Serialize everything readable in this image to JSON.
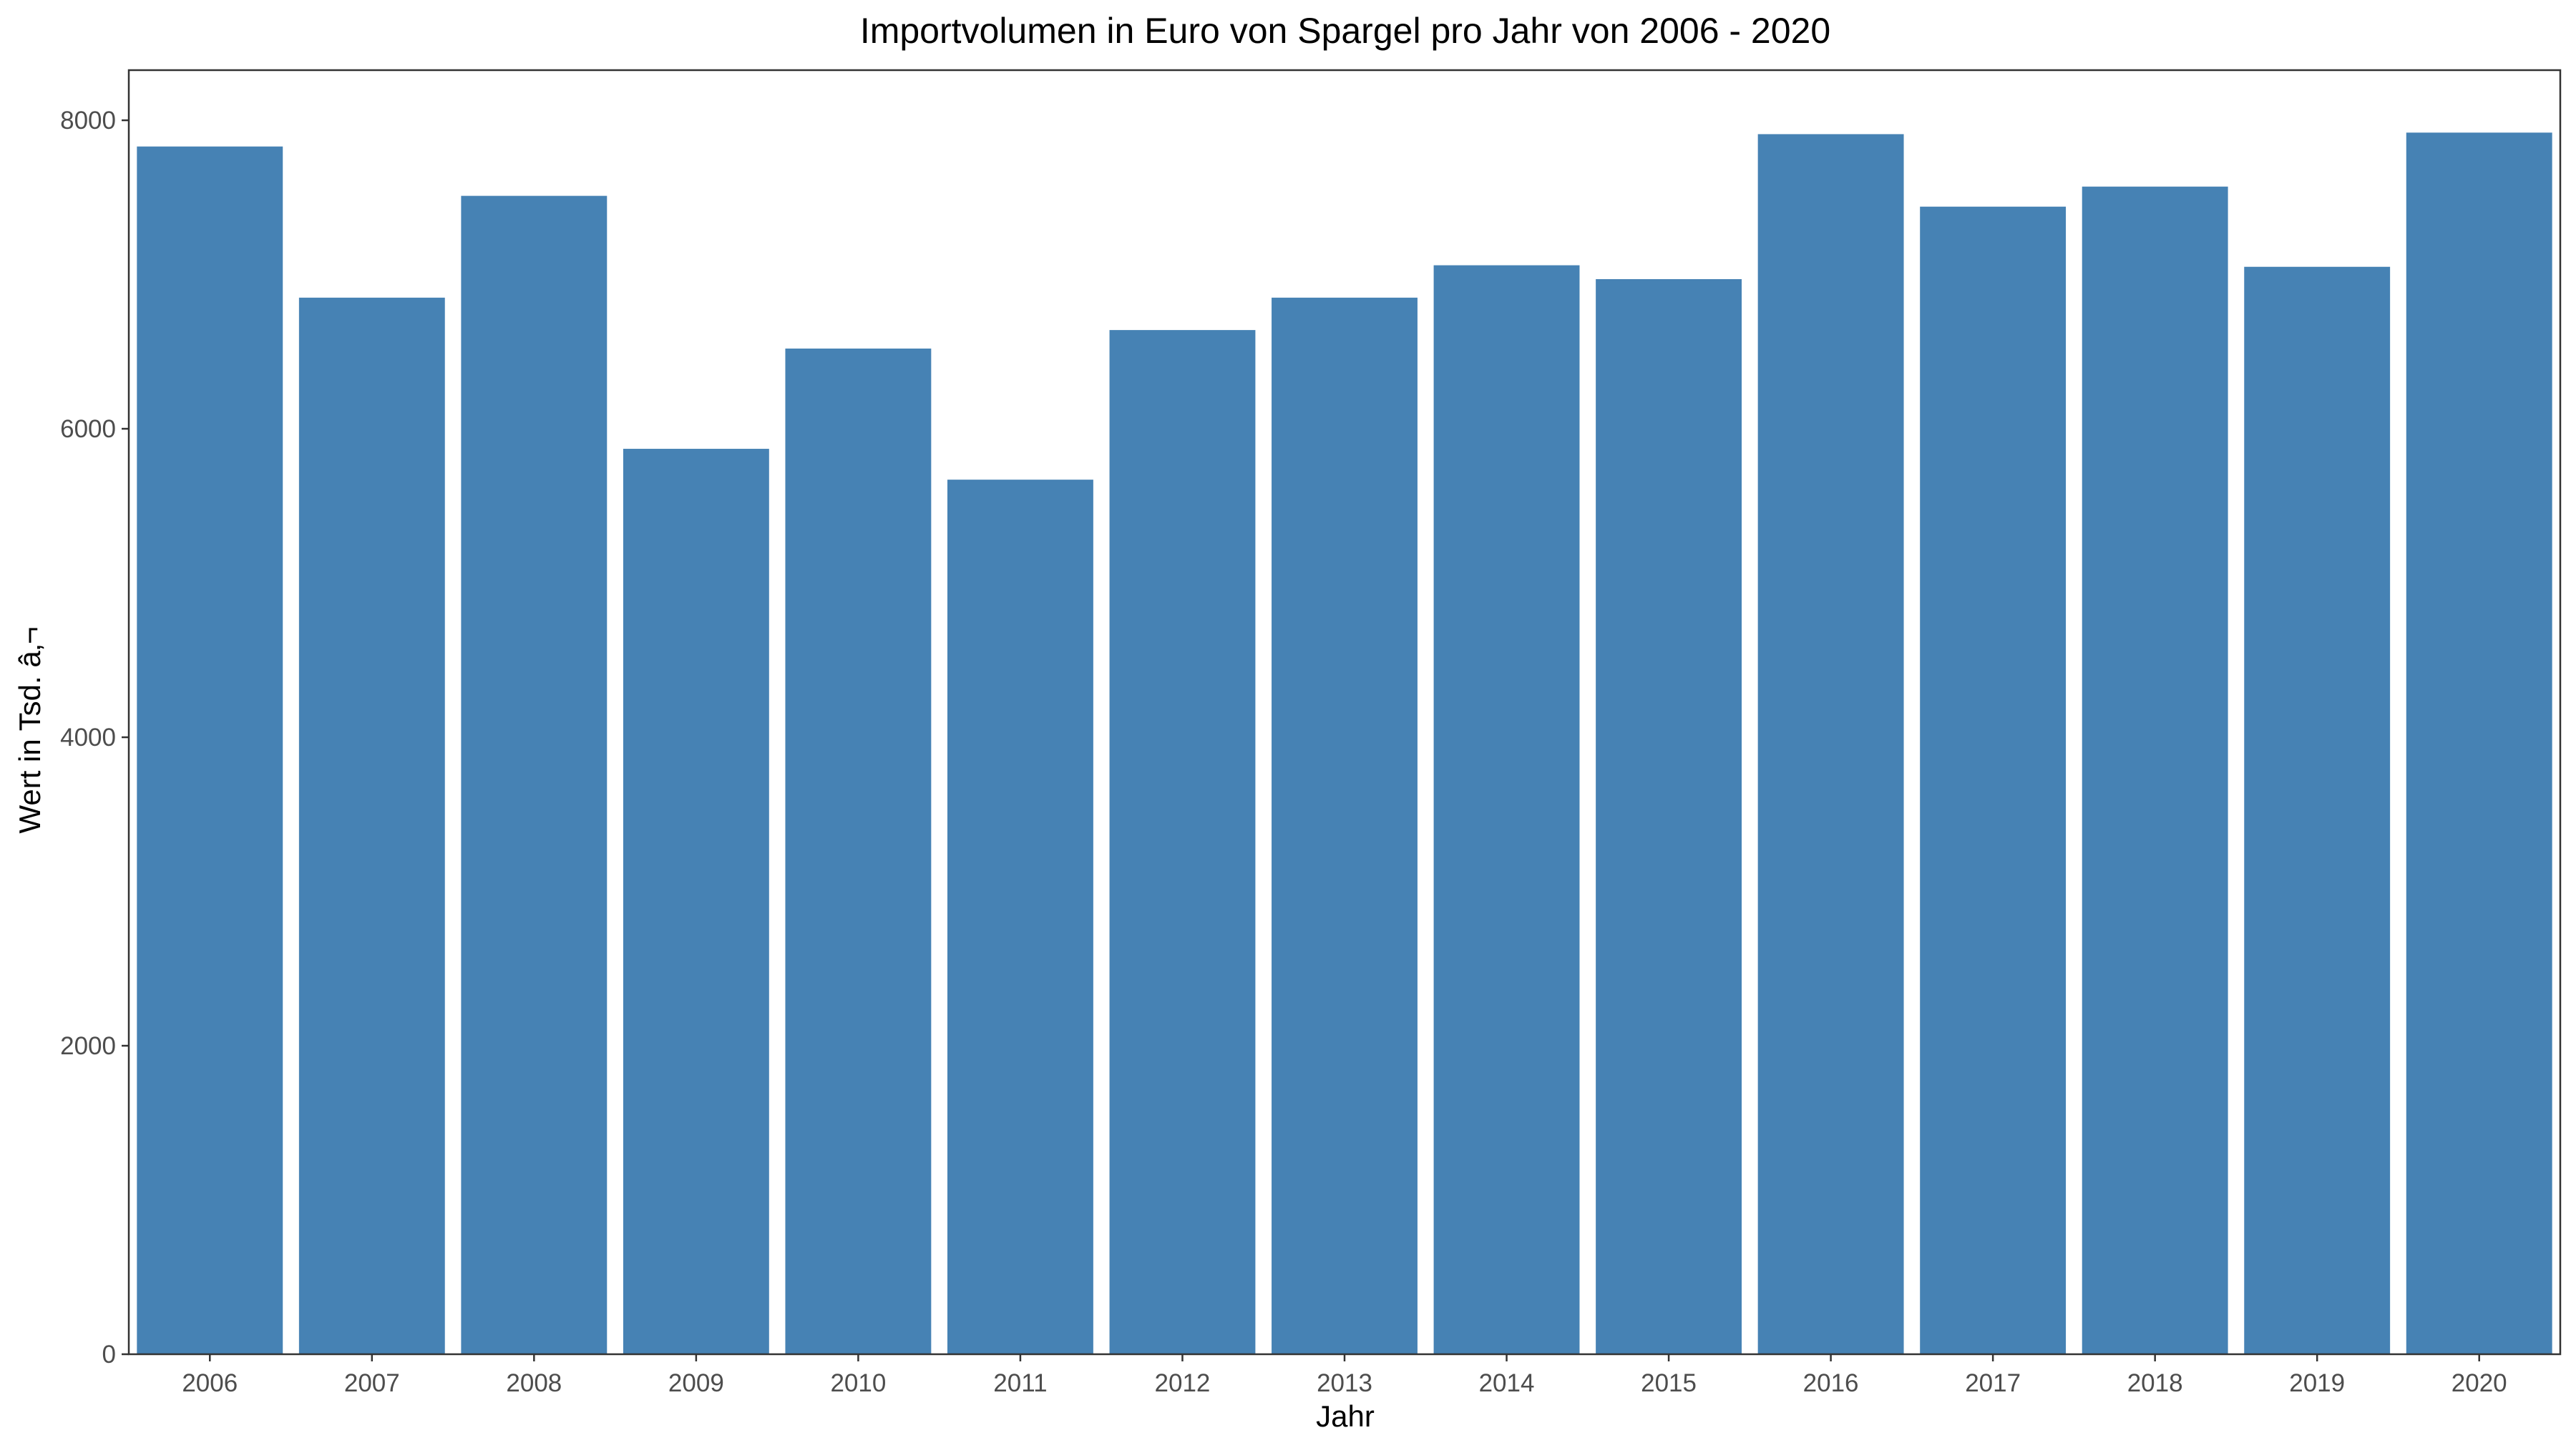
{
  "chart_data": {
    "type": "bar",
    "title": "Importvolumen in Euro von Spargel pro Jahr von 2006 - 2020",
    "xlabel": "Jahr",
    "ylabel": "Wert in Tsd. â‚¬",
    "categories": [
      "2006",
      "2007",
      "2008",
      "2009",
      "2010",
      "2011",
      "2012",
      "2013",
      "2014",
      "2015",
      "2016",
      "2017",
      "2018",
      "2019",
      "2020"
    ],
    "values": [
      7830,
      6850,
      7510,
      5870,
      6520,
      5670,
      6640,
      6850,
      7060,
      6970,
      7910,
      7440,
      7570,
      7050,
      7920
    ],
    "ylim": [
      0,
      8325
    ],
    "yticks": [
      0,
      2000,
      4000,
      6000,
      8000
    ],
    "bar_color": "#4682B4",
    "grid": false,
    "legend": "none"
  }
}
